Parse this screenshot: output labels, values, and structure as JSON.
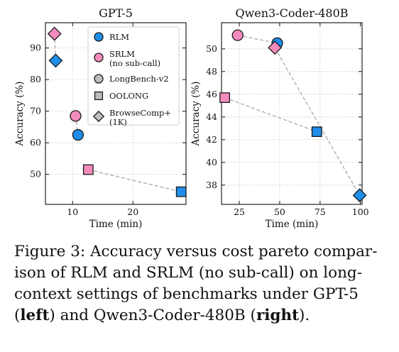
{
  "chart_data": [
    {
      "type": "scatter",
      "title": "GPT-5",
      "xlabel": "Time (min)",
      "ylabel": "Accuracy (%)",
      "xlim": [
        5.5,
        28.8
      ],
      "ylim": [
        40.5,
        98
      ],
      "xticks": [
        10,
        20
      ],
      "yticks": [
        50,
        60,
        70,
        80,
        90
      ],
      "grid": true,
      "legend": {
        "placement": "top-right",
        "methods": [
          {
            "name": "RLM",
            "color": "#1f8ee8"
          },
          {
            "name": "SRLM",
            "name2": "(no sub-call)",
            "color": "#f48bbd"
          }
        ],
        "benchmarks": [
          {
            "name": "LongBench-v2",
            "marker": "circle"
          },
          {
            "name": "OOLONG",
            "marker": "square"
          },
          {
            "name": "BrowseComp+",
            "name2": "(1K)",
            "marker": "diamond"
          }
        ]
      },
      "points": [
        {
          "method": "SRLM",
          "benchmark": "BrowseComp+",
          "x": 7.0,
          "y": 94.5
        },
        {
          "method": "RLM",
          "benchmark": "BrowseComp+",
          "x": 7.2,
          "y": 86.0
        },
        {
          "method": "SRLM",
          "benchmark": "LongBench-v2",
          "x": 10.5,
          "y": 68.5
        },
        {
          "method": "RLM",
          "benchmark": "LongBench-v2",
          "x": 10.9,
          "y": 62.5
        },
        {
          "method": "SRLM",
          "benchmark": "OOLONG",
          "x": 12.6,
          "y": 51.5
        },
        {
          "method": "RLM",
          "benchmark": "OOLONG",
          "x": 28.0,
          "y": 44.5
        }
      ],
      "links": [
        [
          0,
          1
        ],
        [
          2,
          3
        ],
        [
          4,
          5
        ]
      ]
    },
    {
      "type": "scatter",
      "title": "Qwen3-Coder-480B",
      "xlabel": "Time (min)",
      "ylabel": "Accuracy (%)",
      "xlim": [
        14,
        101
      ],
      "ylim": [
        36.3,
        52.3
      ],
      "xticks": [
        25,
        50,
        75,
        100
      ],
      "yticks": [
        38,
        40,
        42,
        44,
        46,
        48,
        50
      ],
      "grid": true,
      "points": [
        {
          "method": "SRLM",
          "benchmark": "LongBench-v2",
          "x": 24,
          "y": 51.2
        },
        {
          "method": "RLM",
          "benchmark": "LongBench-v2",
          "x": 48.5,
          "y": 50.5
        },
        {
          "method": "SRLM",
          "benchmark": "BrowseComp+",
          "x": 47,
          "y": 50.1
        },
        {
          "method": "RLM",
          "benchmark": "BrowseComp+",
          "x": 99.5,
          "y": 37.1
        },
        {
          "method": "SRLM",
          "benchmark": "OOLONG",
          "x": 16,
          "y": 45.7
        },
        {
          "method": "RLM",
          "benchmark": "OOLONG",
          "x": 73,
          "y": 42.7
        }
      ],
      "links": [
        [
          0,
          1
        ],
        [
          2,
          3
        ],
        [
          4,
          5
        ]
      ]
    }
  ],
  "caption": {
    "line1": "Figure 3: Accuracy versus cost pareto compar-",
    "line2": "ison of RLM and SRLM (no sub-call) on long-",
    "line3": "context settings of benchmarks under GPT-5",
    "line4_open": "(",
    "line4_bold1": "left",
    "line4_mid": ") and Qwen3-Coder-480B (",
    "line4_bold2": "right",
    "line4_close": ")."
  }
}
